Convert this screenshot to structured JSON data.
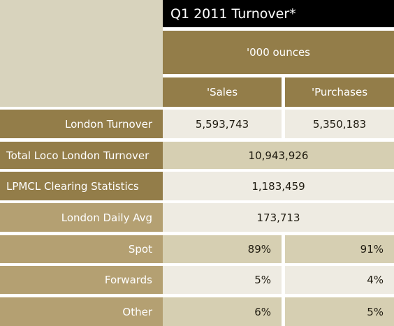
{
  "title": "Q1 2011 Turnover*",
  "units": "'000 ounces",
  "columns": [
    "'Sales",
    "'Purchases"
  ],
  "rows": [
    {
      "label": "London Turnover",
      "values": [
        "5,593,743",
        "5,350,183"
      ]
    },
    {
      "label": "Total Loco London Turnover",
      "value": "10,943,926"
    },
    {
      "label": "LPMCL Clearing Statistics",
      "value": "1,183,459"
    },
    {
      "label": "London Daily Avg",
      "value": "173,713"
    },
    {
      "label": "Spot",
      "values": [
        "89%",
        "91%"
      ]
    },
    {
      "label": "Forwards",
      "values": [
        "5%",
        "4%"
      ]
    },
    {
      "label": "Other",
      "values": [
        "6%",
        "5%"
      ]
    }
  ]
}
